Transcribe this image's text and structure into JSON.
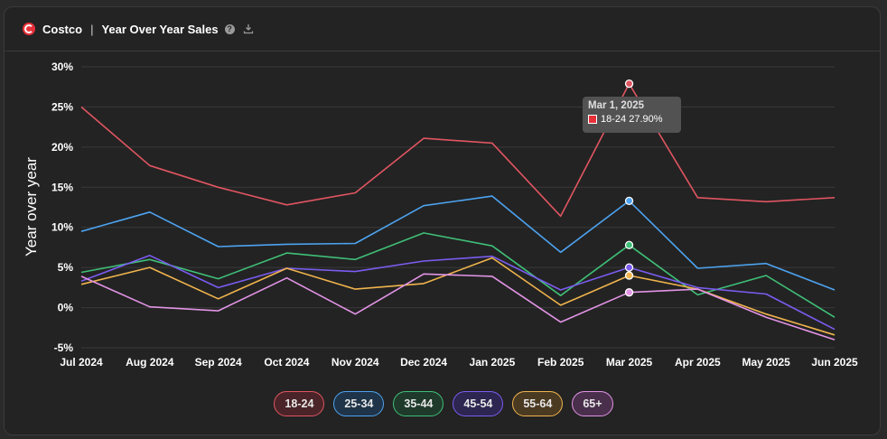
{
  "header": {
    "brand": "Costco",
    "separator": "|",
    "title": "Year Over Year Sales",
    "help_symbol": "?",
    "download_icon": "download-icon",
    "help_icon": "help-icon"
  },
  "chart_data": {
    "type": "line",
    "title": "",
    "ylabel": "Year over year",
    "xlabel": "",
    "y_tick_labels": [
      "30%",
      "25%",
      "20%",
      "15%",
      "10%",
      "5%",
      "0%",
      "-5%"
    ],
    "ylim": [
      -5,
      30
    ],
    "grid": true,
    "categories": [
      "Jul 2024",
      "Aug 2024",
      "Sep 2024",
      "Oct 2024",
      "Nov 2024",
      "Dec 2024",
      "Jan 2025",
      "Feb 2025",
      "Mar 2025",
      "Apr 2025",
      "May 2025",
      "Jun 2025"
    ],
    "series": [
      {
        "name": "18-24",
        "color": "#e05561",
        "values": [
          25.0,
          17.7,
          15.0,
          12.8,
          14.3,
          21.1,
          20.5,
          11.4,
          27.9,
          13.7,
          13.2,
          13.7
        ]
      },
      {
        "name": "25-34",
        "color": "#4da3f0",
        "values": [
          9.5,
          11.9,
          7.6,
          7.9,
          8.0,
          12.7,
          13.9,
          6.9,
          13.3,
          4.9,
          5.5,
          2.2
        ]
      },
      {
        "name": "35-44",
        "color": "#3fbf77",
        "values": [
          4.4,
          6.0,
          3.6,
          6.8,
          6.0,
          9.3,
          7.7,
          1.5,
          7.8,
          1.6,
          4.0,
          -1.2
        ]
      },
      {
        "name": "45-54",
        "color": "#7b5cf0",
        "values": [
          3.3,
          6.5,
          2.5,
          4.9,
          4.5,
          5.8,
          6.4,
          2.2,
          5.0,
          2.5,
          1.7,
          -2.7
        ]
      },
      {
        "name": "55-64",
        "color": "#f0b44d",
        "values": [
          2.9,
          5.0,
          1.1,
          4.9,
          2.3,
          3.0,
          6.2,
          0.3,
          4.0,
          2.3,
          -0.8,
          -3.4
        ]
      },
      {
        "name": "65+",
        "color": "#e294e6",
        "values": [
          3.9,
          0.1,
          -0.4,
          3.7,
          -0.8,
          4.2,
          3.9,
          -1.8,
          1.9,
          2.3,
          -1.2,
          -4.0
        ]
      }
    ],
    "highlight_index": 8,
    "tooltip": {
      "date": "Mar 1, 2025",
      "series": "18-24",
      "value": "27.90%"
    }
  },
  "legend": [
    {
      "label": "18-24",
      "border": "#e05561",
      "bg": "#4a2428"
    },
    {
      "label": "25-34",
      "border": "#4da3f0",
      "bg": "#1f3448"
    },
    {
      "label": "35-44",
      "border": "#3fbf77",
      "bg": "#1f3a2b"
    },
    {
      "label": "45-54",
      "border": "#7b5cf0",
      "bg": "#2d2650"
    },
    {
      "label": "55-64",
      "border": "#f0b44d",
      "bg": "#4a3a22"
    },
    {
      "label": "65+",
      "border": "#e294e6",
      "bg": "#4a2f4c"
    }
  ]
}
